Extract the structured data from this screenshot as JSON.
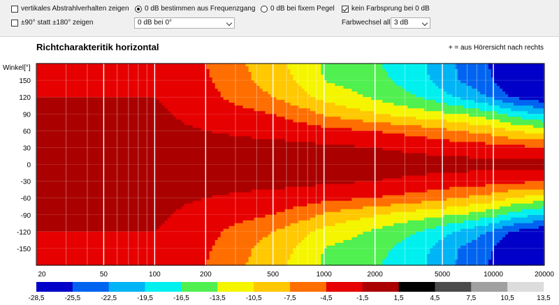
{
  "controls": {
    "vertical_label": "vertikales Abstrahlverhalten zeigen",
    "range_label": "±90° statt ±180° zeigen",
    "radio_freq_label": "0 dB bestimmen aus Frequenzgang",
    "radio_fixed_label": "0 dB bei fixem Pegel",
    "no_jump_label": "kein Farbsprung bei 0 dB",
    "zero_db_select": "0 dB bei 0°",
    "color_change_label": "Farbwechsel  alle",
    "color_step_select": "3 dB"
  },
  "chart_data": {
    "type": "heatmap",
    "title": "Richtcharakteritik horizontal",
    "annotation": "+ = aus Hörersicht nach rechts",
    "ylabel": "Winkel[°]",
    "x_scale": "log",
    "x_range": [
      20,
      20000
    ],
    "y_range": [
      -180,
      180
    ],
    "x_ticks": [
      20,
      50,
      100,
      200,
      500,
      1000,
      2000,
      5000,
      10000,
      20000
    ],
    "x_tick_labels": [
      "20",
      "50",
      "100",
      "200",
      "500",
      "1000",
      "2000",
      "5000",
      "10000",
      "20000"
    ],
    "y_ticks": [
      150,
      120,
      90,
      60,
      30,
      0,
      -30,
      -60,
      -90,
      -120,
      -150
    ],
    "y_tick_labels": [
      "150",
      "120",
      "90",
      "60",
      "30",
      "0",
      "-30",
      "-60",
      "-90",
      "-120",
      "-150"
    ],
    "colorbar": {
      "labels": [
        "-28,5",
        "-25,5",
        "-22,5",
        "-19,5",
        "-16,5",
        "-13,5",
        "-10,5",
        "-7,5",
        "-4,5",
        "-1,5",
        "1,5",
        "4,5",
        "7,5",
        "10,5",
        "13,5"
      ],
      "colors": [
        "#0000c8",
        "#0064f0",
        "#00b4f5",
        "#00f0f0",
        "#50f050",
        "#f5f500",
        "#ffc800",
        "#ff6e00",
        "#e60000",
        "#aa0000",
        "#000000",
        "#4b4b4b",
        "#a0a0a0",
        "#dcdcdc"
      ]
    },
    "level_contours_db_vs_log10_freq": {
      "log10_freq": [
        2.0,
        2.3,
        2.5,
        2.7,
        2.9,
        3.0,
        3.2,
        3.4,
        3.6,
        3.8,
        4.0,
        4.1,
        4.3
      ],
      "angles_deg": [
        0,
        30,
        60,
        90,
        120,
        150,
        180
      ],
      "levels_db": [
        [
          -0.5,
          -0.5,
          -0.5,
          -0.5,
          -0.5,
          -0.5,
          -0.5,
          -0.5,
          -0.5,
          -0.5,
          -0.5,
          -0.5,
          -0.5
        ],
        [
          -0.5,
          -0.5,
          -0.5,
          -0.6,
          -0.8,
          -1.0,
          -1.3,
          -1.7,
          -2.2,
          -2.8,
          -3.2,
          -3.8,
          -4.0
        ],
        [
          -0.8,
          -1.5,
          -2.0,
          -2.5,
          -3.0,
          -3.5,
          -4.2,
          -5.0,
          -6.0,
          -7.5,
          -9.0,
          -10.5,
          -12.0
        ],
        [
          -1.0,
          -2.5,
          -3.5,
          -4.5,
          -6.5,
          -8.0,
          -9.5,
          -11.0,
          -12.5,
          -13.5,
          -15.5,
          -17.5,
          -20.0
        ],
        [
          -1.5,
          -3.5,
          -5.5,
          -7.5,
          -10.0,
          -11.5,
          -13.0,
          -15.0,
          -17.0,
          -20.0,
          -23.0,
          -25.5,
          -28.0
        ],
        [
          -2.0,
          -4.0,
          -6.5,
          -9.0,
          -11.5,
          -13.5,
          -15.0,
          -16.5,
          -19.0,
          -22.5,
          -25.5,
          -28.0,
          -29.0
        ],
        [
          -2.0,
          -4.5,
          -7.0,
          -9.5,
          -12.0,
          -14.0,
          -15.5,
          -17.0,
          -19.5,
          -23.0,
          -26.0,
          -28.5,
          -29.5
        ]
      ]
    }
  }
}
